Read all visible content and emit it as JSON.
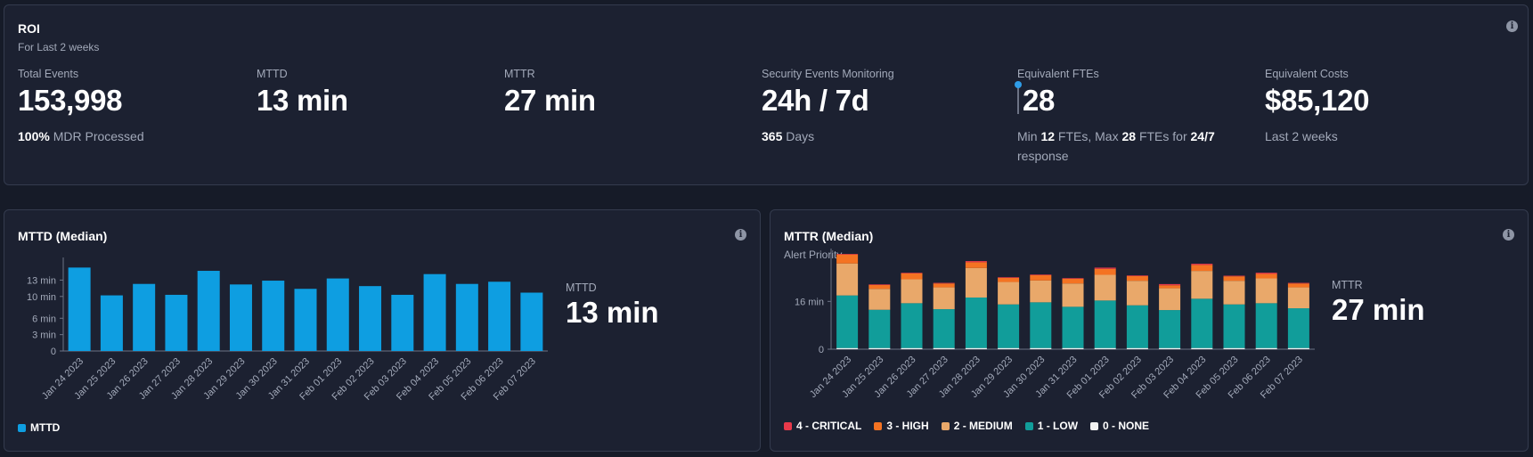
{
  "roi": {
    "title": "ROI",
    "subtitle": "For Last 2 weeks",
    "metrics": {
      "total_events": {
        "label": "Total Events",
        "value": "153,998",
        "detail_bold": "100%",
        "detail_text": " MDR Processed"
      },
      "mttd": {
        "label": "MTTD",
        "value": "13 min"
      },
      "mttr": {
        "label": "MTTR",
        "value": "27 min"
      },
      "sec_monitoring": {
        "label": "Security Events Monitoring",
        "value": "24h / 7d",
        "detail_bold": "365",
        "detail_text": " Days"
      },
      "fte": {
        "label": "Equivalent FTEs",
        "value": "28",
        "d1": "Min ",
        "d2": "12",
        "d3": " FTEs, Max ",
        "d4": "28",
        "d5": " FTEs for ",
        "d6": "24/7",
        "d7": "response"
      },
      "costs": {
        "label": "Equivalent Costs",
        "value": "$85,120",
        "detail_text": "Last 2 weeks"
      }
    }
  },
  "mttd_panel": {
    "title": "MTTD (Median)",
    "side_label": "MTTD",
    "side_value": "13 min",
    "legend": "MTTD"
  },
  "mttr_panel": {
    "title": "MTTR (Median)",
    "subtitle": "Alert Priority",
    "side_label": "MTTR",
    "side_value": "27 min"
  },
  "colors": {
    "mttd_bar": "#0e9ee1",
    "critical": "#e8394a",
    "high": "#f47322",
    "medium": "#e9a86a",
    "low": "#119d9a",
    "none": "#f2f2f2"
  },
  "chart_data": [
    {
      "type": "bar",
      "title": "MTTD (Median)",
      "categories": [
        "Jan 24 2023",
        "Jan 25 2023",
        "Jan 26 2023",
        "Jan 27 2023",
        "Jan 28 2023",
        "Jan 29 2023",
        "Jan 30 2023",
        "Jan 31 2023",
        "Feb 01 2023",
        "Feb 02 2023",
        "Feb 03 2023",
        "Feb 04 2023",
        "Feb 05 2023",
        "Feb 06 2023",
        "Feb 07 2023"
      ],
      "series": [
        {
          "name": "MTTD",
          "values": [
            15.3,
            10.2,
            12.3,
            10.3,
            14.7,
            12.2,
            12.9,
            11.4,
            13.3,
            11.9,
            10.3,
            14.1,
            12.3,
            12.7,
            10.7
          ]
        }
      ],
      "yticks": [
        "0",
        "3 min",
        "6 min",
        "10 min",
        "13 min"
      ],
      "ytick_values": [
        0,
        3,
        6,
        10,
        13
      ],
      "ylim": [
        0,
        16.5
      ],
      "legend": "bottom-left"
    },
    {
      "type": "bar",
      "stacked": true,
      "title": "MTTR (Median)",
      "subtitle": "Alert Priority",
      "categories": [
        "Jan 24 2023",
        "Jan 25 2023",
        "Jan 26 2023",
        "Jan 27 2023",
        "Jan 28 2023",
        "Jan 29 2023",
        "Jan 30 2023",
        "Jan 31 2023",
        "Feb 01 2023",
        "Feb 02 2023",
        "Feb 03 2023",
        "Feb 04 2023",
        "Feb 05 2023",
        "Feb 06 2023",
        "Feb 07 2023"
      ],
      "series": [
        {
          "name": "0 - NONE",
          "values": [
            0.4,
            0.4,
            0.4,
            0.4,
            0.4,
            0.4,
            0.4,
            0.4,
            0.4,
            0.4,
            0.4,
            0.4,
            0.4,
            0.4,
            0.4
          ]
        },
        {
          "name": "1 - LOW",
          "values": [
            17.6,
            12.8,
            15.0,
            13.0,
            16.9,
            14.6,
            15.3,
            13.8,
            15.9,
            14.3,
            12.7,
            16.5,
            14.6,
            15.0,
            13.3
          ]
        },
        {
          "name": "2 - MEDIUM",
          "values": [
            10.7,
            7.0,
            8.0,
            7.3,
            9.9,
            7.5,
            7.3,
            7.8,
            8.6,
            8.2,
            7.3,
            9.3,
            7.9,
            8.3,
            7.0
          ]
        },
        {
          "name": "3 - HIGH",
          "values": [
            3.0,
            1.3,
            2.0,
            1.3,
            1.9,
            1.4,
            1.8,
            1.6,
            2.0,
            1.6,
            1.0,
            2.0,
            1.5,
            1.5,
            1.3
          ]
        },
        {
          "name": "4 - CRITICAL",
          "values": [
            0.2,
            0.2,
            0.2,
            0.2,
            0.4,
            0.2,
            0.2,
            0.2,
            0.4,
            0.2,
            0.4,
            0.4,
            0.2,
            0.4,
            0.2
          ]
        }
      ],
      "yticks": [
        "0",
        "16 min"
      ],
      "ytick_values": [
        0,
        16
      ],
      "ylim": [
        0,
        32.5
      ],
      "legend": "bottom"
    }
  ]
}
